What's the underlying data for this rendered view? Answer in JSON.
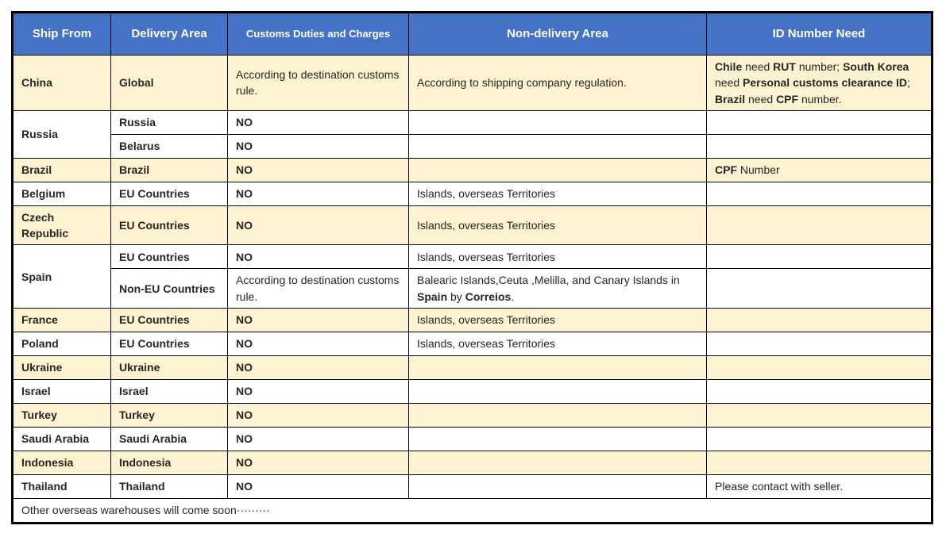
{
  "colors": {
    "header_bg": "#4472C4",
    "header_text": "#ffffff",
    "stripe_bg": "#FDF3D1",
    "border": "#000000",
    "body_text": "#262626"
  },
  "table": {
    "columns": [
      {
        "label": "Ship From"
      },
      {
        "label": "Delivery Area"
      },
      {
        "label": "Customs Duties and Charges"
      },
      {
        "label": "Non-delivery Area"
      },
      {
        "label": "ID Number Need"
      }
    ],
    "rows": [
      {
        "highlight": true,
        "cells": [
          {
            "parts": [
              {
                "t": "China",
                "b": true
              }
            ]
          },
          {
            "parts": [
              {
                "t": "Global",
                "b": true
              }
            ]
          },
          {
            "align": "justify",
            "parts": [
              {
                "t": "According to destination customs rule.",
                "b": false
              }
            ]
          },
          {
            "parts": [
              {
                "t": "According to shipping company regulation.",
                "b": false
              }
            ]
          },
          {
            "align": "justify",
            "parts": [
              {
                "t": "Chile",
                "b": true
              },
              {
                "t": " need ",
                "b": false
              },
              {
                "t": "RUT",
                "b": true
              },
              {
                "t": " number; ",
                "b": false
              },
              {
                "t": "South Korea",
                "b": true
              },
              {
                "t": " need ",
                "b": false
              },
              {
                "t": "Personal customs clearance ID",
                "b": true
              },
              {
                "t": "; ",
                "b": false
              },
              {
                "t": "Brazil",
                "b": true
              },
              {
                "t": " need ",
                "b": false
              },
              {
                "t": "CPF",
                "b": true
              },
              {
                "t": " number.",
                "b": false
              }
            ]
          }
        ]
      },
      {
        "highlight": false,
        "cells": [
          {
            "rowspan": 2,
            "parts": [
              {
                "t": "Russia",
                "b": true
              }
            ]
          },
          {
            "parts": [
              {
                "t": "Russia",
                "b": true
              }
            ]
          },
          {
            "align": "center",
            "parts": [
              {
                "t": "NO",
                "b": true
              }
            ]
          },
          {
            "parts": []
          },
          {
            "parts": []
          }
        ]
      },
      {
        "highlight": false,
        "cells": [
          {
            "parts": [
              {
                "t": "Belarus",
                "b": true
              }
            ]
          },
          {
            "align": "center",
            "parts": [
              {
                "t": "NO",
                "b": true
              }
            ]
          },
          {
            "parts": []
          },
          {
            "parts": []
          }
        ]
      },
      {
        "highlight": true,
        "cells": [
          {
            "parts": [
              {
                "t": "Brazil",
                "b": true
              }
            ]
          },
          {
            "parts": [
              {
                "t": "Brazil",
                "b": true
              }
            ]
          },
          {
            "align": "center",
            "parts": [
              {
                "t": "NO",
                "b": true
              }
            ]
          },
          {
            "parts": []
          },
          {
            "parts": [
              {
                "t": "CPF",
                "b": true
              },
              {
                "t": " Number",
                "b": false
              }
            ]
          }
        ]
      },
      {
        "highlight": false,
        "cells": [
          {
            "parts": [
              {
                "t": "Belgium",
                "b": true
              }
            ]
          },
          {
            "parts": [
              {
                "t": "EU Countries",
                "b": true
              }
            ]
          },
          {
            "align": "center",
            "parts": [
              {
                "t": "NO",
                "b": true
              }
            ]
          },
          {
            "parts": [
              {
                "t": "Islands, overseas Territories",
                "b": false
              }
            ]
          },
          {
            "parts": []
          }
        ]
      },
      {
        "highlight": true,
        "cells": [
          {
            "parts": [
              {
                "t": "Czech Republic",
                "b": true
              }
            ]
          },
          {
            "parts": [
              {
                "t": "EU Countries",
                "b": true
              }
            ]
          },
          {
            "align": "center",
            "parts": [
              {
                "t": "NO",
                "b": true
              }
            ]
          },
          {
            "parts": [
              {
                "t": "Islands, overseas Territories",
                "b": false
              }
            ]
          },
          {
            "parts": []
          }
        ]
      },
      {
        "highlight": false,
        "cells": [
          {
            "rowspan": 2,
            "parts": [
              {
                "t": "Spain",
                "b": true
              }
            ]
          },
          {
            "parts": [
              {
                "t": "EU Countries",
                "b": true
              }
            ]
          },
          {
            "align": "center",
            "parts": [
              {
                "t": "NO",
                "b": true
              }
            ]
          },
          {
            "parts": [
              {
                "t": "Islands, overseas Territories",
                "b": false
              }
            ]
          },
          {
            "parts": []
          }
        ]
      },
      {
        "highlight": false,
        "cells": [
          {
            "parts": [
              {
                "t": "Non-EU Countries",
                "b": true
              }
            ]
          },
          {
            "align": "justify",
            "parts": [
              {
                "t": "According to destination customs rule.",
                "b": false
              }
            ]
          },
          {
            "parts": [
              {
                "t": "Balearic Islands,Ceuta ,Melilla, and Canary Islands in ",
                "b": false
              },
              {
                "t": "Spain",
                "b": true
              },
              {
                "t": " by ",
                "b": false
              },
              {
                "t": "Correios",
                "b": true
              },
              {
                "t": ".",
                "b": false
              }
            ]
          },
          {
            "parts": []
          }
        ]
      },
      {
        "highlight": true,
        "cells": [
          {
            "parts": [
              {
                "t": "France",
                "b": true
              }
            ]
          },
          {
            "parts": [
              {
                "t": "EU Countries",
                "b": true
              }
            ]
          },
          {
            "align": "center",
            "parts": [
              {
                "t": "NO",
                "b": true
              }
            ]
          },
          {
            "parts": [
              {
                "t": "Islands, overseas Territories",
                "b": false
              }
            ]
          },
          {
            "parts": []
          }
        ]
      },
      {
        "highlight": false,
        "cells": [
          {
            "parts": [
              {
                "t": "Poland",
                "b": true
              }
            ]
          },
          {
            "parts": [
              {
                "t": "EU Countries",
                "b": true
              }
            ]
          },
          {
            "align": "center",
            "parts": [
              {
                "t": "NO",
                "b": true
              }
            ]
          },
          {
            "parts": [
              {
                "t": "Islands, overseas Territories",
                "b": false
              }
            ]
          },
          {
            "parts": []
          }
        ]
      },
      {
        "highlight": true,
        "cells": [
          {
            "parts": [
              {
                "t": "Ukraine",
                "b": true
              }
            ]
          },
          {
            "parts": [
              {
                "t": "Ukraine",
                "b": true
              }
            ]
          },
          {
            "align": "center",
            "parts": [
              {
                "t": "NO",
                "b": true
              }
            ]
          },
          {
            "parts": []
          },
          {
            "parts": []
          }
        ]
      },
      {
        "highlight": false,
        "cells": [
          {
            "parts": [
              {
                "t": "Israel",
                "b": true
              }
            ]
          },
          {
            "parts": [
              {
                "t": "Israel",
                "b": true
              }
            ]
          },
          {
            "align": "center",
            "parts": [
              {
                "t": "NO",
                "b": true
              }
            ]
          },
          {
            "parts": []
          },
          {
            "parts": []
          }
        ]
      },
      {
        "highlight": true,
        "cells": [
          {
            "parts": [
              {
                "t": "Turkey",
                "b": true
              }
            ]
          },
          {
            "parts": [
              {
                "t": "Turkey",
                "b": true
              }
            ]
          },
          {
            "align": "center",
            "parts": [
              {
                "t": "NO",
                "b": true
              }
            ]
          },
          {
            "parts": []
          },
          {
            "parts": []
          }
        ]
      },
      {
        "highlight": false,
        "cells": [
          {
            "parts": [
              {
                "t": "Saudi Arabia",
                "b": true
              }
            ]
          },
          {
            "parts": [
              {
                "t": "Saudi Arabia",
                "b": true
              }
            ]
          },
          {
            "align": "center",
            "parts": [
              {
                "t": "NO",
                "b": true
              }
            ]
          },
          {
            "parts": []
          },
          {
            "parts": []
          }
        ]
      },
      {
        "highlight": true,
        "cells": [
          {
            "parts": [
              {
                "t": "Indonesia",
                "b": true
              }
            ]
          },
          {
            "parts": [
              {
                "t": "Indonesia",
                "b": true
              }
            ]
          },
          {
            "align": "center",
            "parts": [
              {
                "t": "NO",
                "b": true
              }
            ]
          },
          {
            "parts": []
          },
          {
            "parts": []
          }
        ]
      },
      {
        "highlight": false,
        "cells": [
          {
            "parts": [
              {
                "t": "Thailand",
                "b": true
              }
            ]
          },
          {
            "parts": [
              {
                "t": "Thailand",
                "b": true
              }
            ]
          },
          {
            "align": "center",
            "parts": [
              {
                "t": "NO",
                "b": true
              }
            ]
          },
          {
            "parts": []
          },
          {
            "parts": [
              {
                "t": "Please contact with seller.",
                "b": false
              }
            ]
          }
        ]
      }
    ],
    "footer_note": "Other overseas warehouses will come soon·········"
  }
}
